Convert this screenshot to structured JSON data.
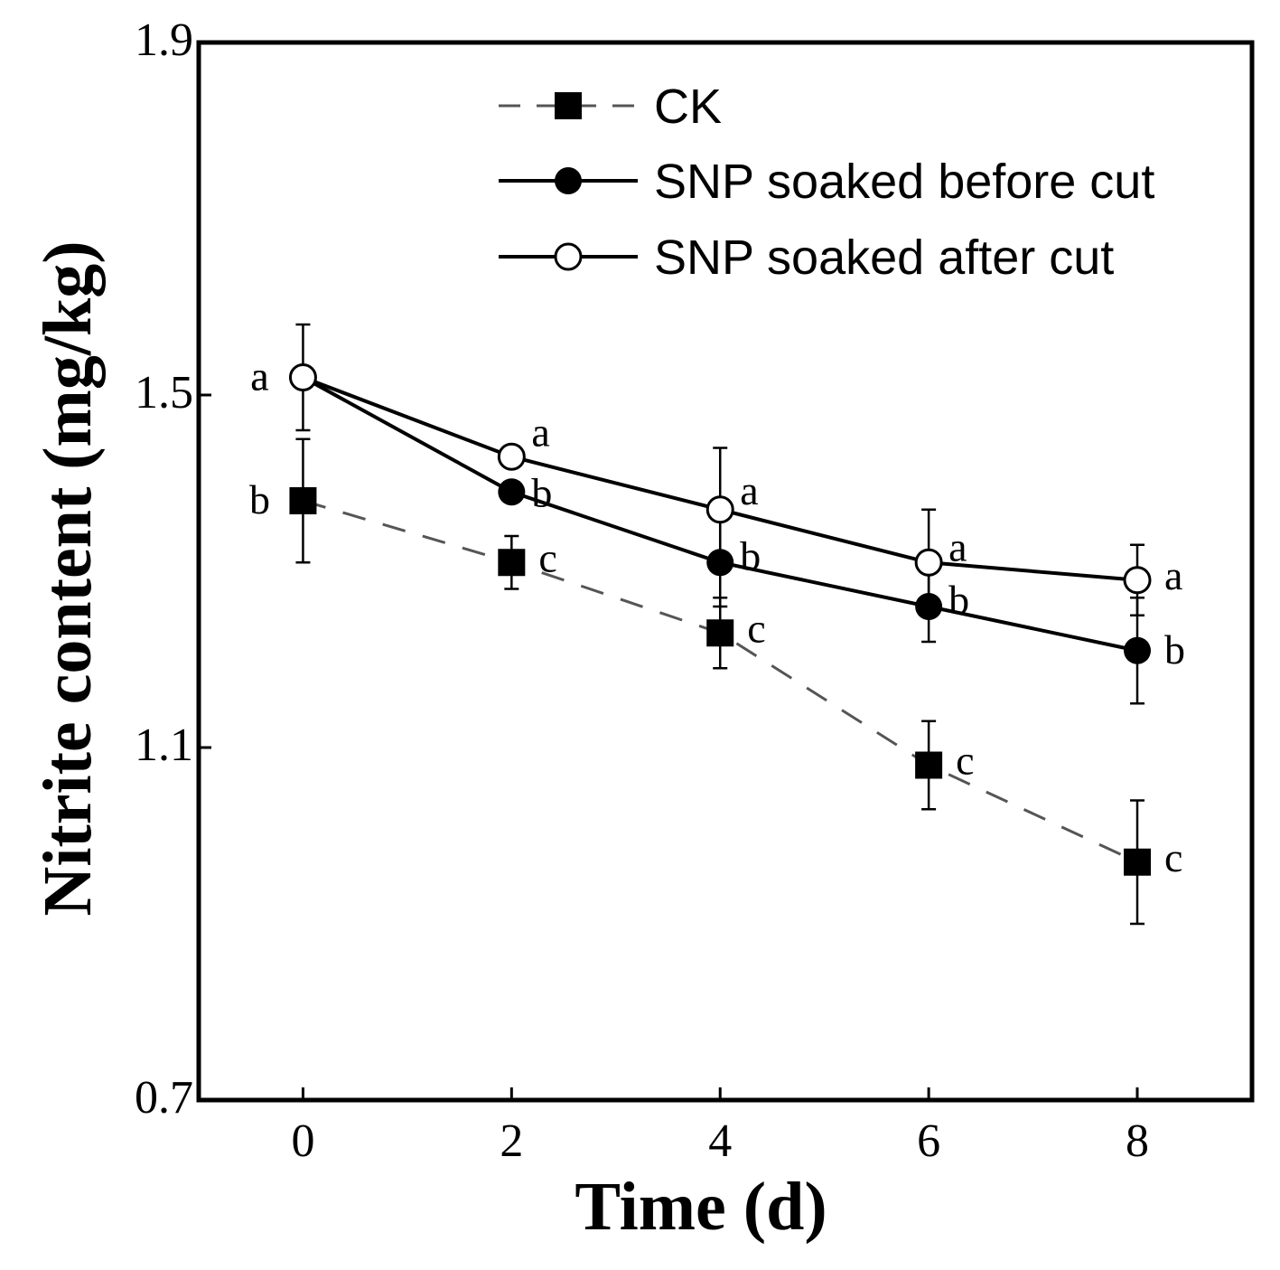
{
  "chart_data": {
    "type": "line",
    "title": "",
    "xlabel": "Time (d)",
    "ylabel": "Nitrite content (mg/kg)",
    "x": [
      0,
      2,
      4,
      6,
      8
    ],
    "x_tick_labels": [
      "0",
      "2",
      "4",
      "6",
      "8"
    ],
    "xlim": [
      -1,
      9.1
    ],
    "ylim": [
      0.7,
      1.9
    ],
    "y_ticks": [
      0.7,
      1.1,
      1.5,
      1.9
    ],
    "y_tick_labels": [
      "0.7",
      "1.1",
      "1.5",
      "1.9"
    ],
    "grid": false,
    "legend_position": "top-right",
    "series": [
      {
        "name": "CK",
        "marker": "filled-square",
        "line_style": "dashed",
        "line_color": "#555555",
        "values": [
          1.38,
          1.31,
          1.23,
          1.08,
          0.97
        ],
        "errors": [
          0.07,
          0.03,
          0.04,
          0.05,
          0.07
        ],
        "sig_letters": [
          "b",
          "c",
          "c",
          "c",
          "c"
        ]
      },
      {
        "name": "SNP soaked  before cut",
        "marker": "filled-circle",
        "line_style": "solid",
        "line_color": "#000000",
        "values": [
          1.52,
          1.39,
          1.31,
          1.26,
          1.21
        ],
        "errors": [
          0.0,
          0.0,
          0.05,
          0.04,
          0.06
        ],
        "sig_letters": [
          "a",
          "b",
          "b",
          "b",
          "b"
        ]
      },
      {
        "name": "SNP soaked  after cut",
        "marker": "open-circle",
        "line_style": "solid",
        "line_color": "#000000",
        "values": [
          1.52,
          1.43,
          1.37,
          1.31,
          1.29
        ],
        "errors": [
          0.06,
          0.0,
          0.07,
          0.06,
          0.04
        ],
        "sig_letters": [
          "a",
          "a",
          "a",
          "a",
          "a"
        ]
      }
    ]
  }
}
